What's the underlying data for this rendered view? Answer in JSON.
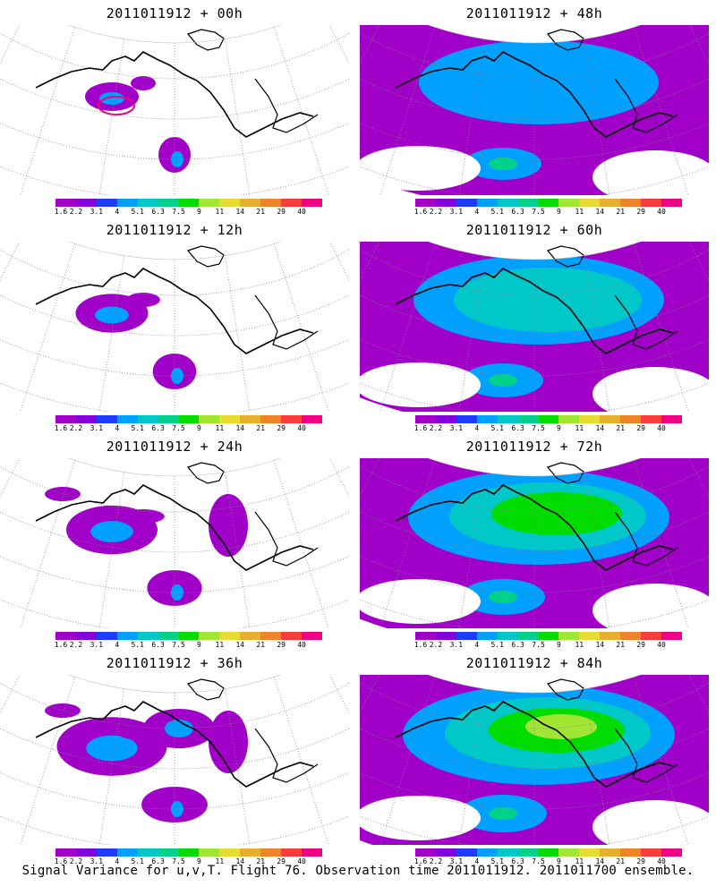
{
  "panels": [
    {
      "title": "2011011912 + 00h",
      "intensity": 0
    },
    {
      "title": "2011011912 + 48h",
      "intensity": 4
    },
    {
      "title": "2011011912 + 12h",
      "intensity": 1
    },
    {
      "title": "2011011912 + 60h",
      "intensity": 5
    },
    {
      "title": "2011011912 + 24h",
      "intensity": 2
    },
    {
      "title": "2011011912 + 72h",
      "intensity": 6
    },
    {
      "title": "2011011912 + 36h",
      "intensity": 3
    },
    {
      "title": "2011011912 + 84h",
      "intensity": 7
    }
  ],
  "legend": {
    "labels": [
      "1.6",
      "2.2",
      "3.1",
      "4",
      "5.1",
      "6.3",
      "7.5",
      "9",
      "11",
      "14",
      "21",
      "29",
      "40"
    ],
    "colors": [
      "#a000c8",
      "#8200dc",
      "#1e3cff",
      "#00a0ff",
      "#00c8c8",
      "#00d28c",
      "#00dc00",
      "#a0e632",
      "#e6dc32",
      "#e6af2d",
      "#f08228",
      "#fa3c3c",
      "#f00082"
    ]
  },
  "footer": "Signal Variance for u,v,T. Flight 76. Observation time 2011011912. 2011011700 ensemble."
}
